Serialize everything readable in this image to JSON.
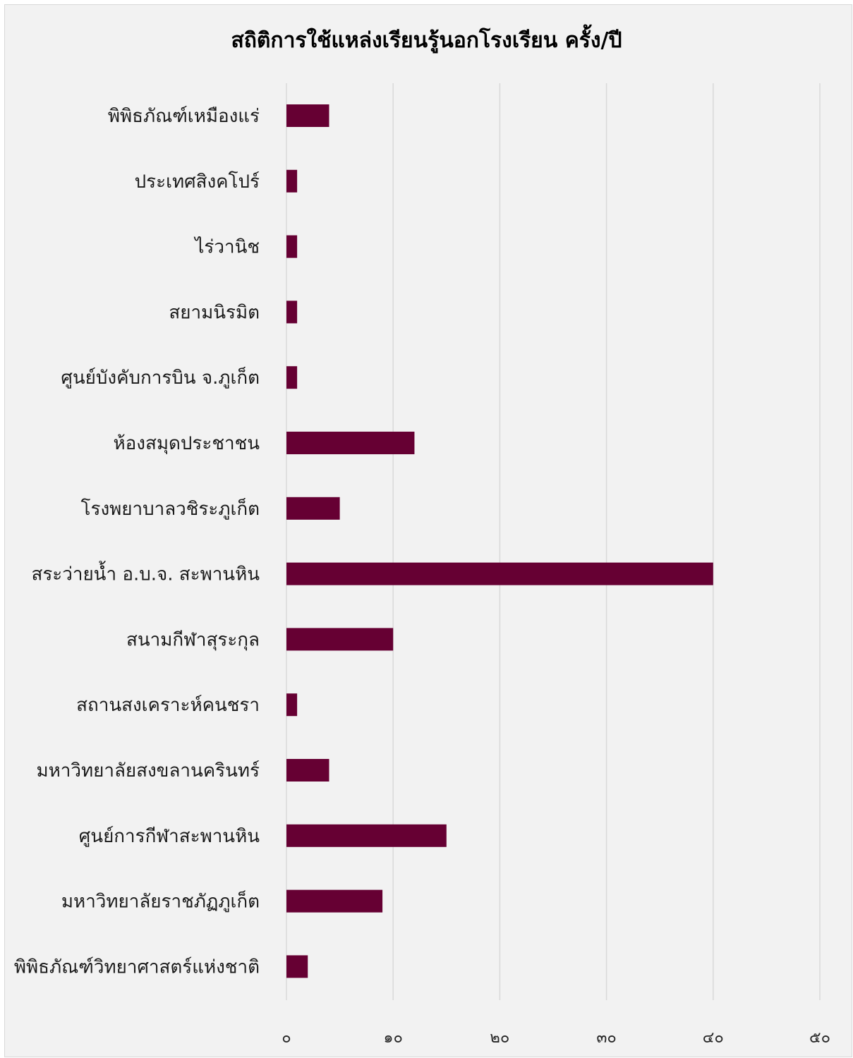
{
  "chart_data": {
    "type": "bar",
    "orientation": "horizontal",
    "title": "สถิติการใช้แหล่งเรียนรู้นอกโรงเรียน ครั้ง/ปี",
    "categories": [
      "พิพิธภัณฑ์เหมืองแร่",
      "ประเทศสิงคโปร์",
      "ไร่วานิช",
      "สยามนิรมิต",
      "ศูนย์บังคับการบิน จ.ภูเก็ต",
      "ห้องสมุดประชาชน",
      "โรงพยาบาลวชิระภูเก็ต",
      "สระว่ายน้ำ อ.บ.จ. สะพานหิน",
      "สนามกีฬาสุระกุล",
      "สถานสงเคราะห์คนชรา",
      "มหาวิทยาลัยสงขลานครินทร์",
      "ศูนย์การกีฬาสะพานหิน",
      "มหาวิทยาลัยราชภัฏภูเก็ต",
      "พิพิธภัณฑ์วิทยาศาสตร์แห่งชาติ"
    ],
    "values": [
      4,
      1,
      1,
      1,
      1,
      12,
      5,
      40,
      10,
      1,
      4,
      15,
      9,
      2
    ],
    "xlim": [
      0,
      50
    ],
    "x_ticks": [
      0,
      10,
      20,
      30,
      40,
      50
    ],
    "x_tick_labels": [
      "๐",
      "๑๐",
      "๒๐",
      "๓๐",
      "๔๐",
      "๕๐"
    ],
    "grid": true,
    "bar_color": "#660033",
    "grid_color": "#d9d9d9",
    "background_color": "#f2f2f2"
  }
}
